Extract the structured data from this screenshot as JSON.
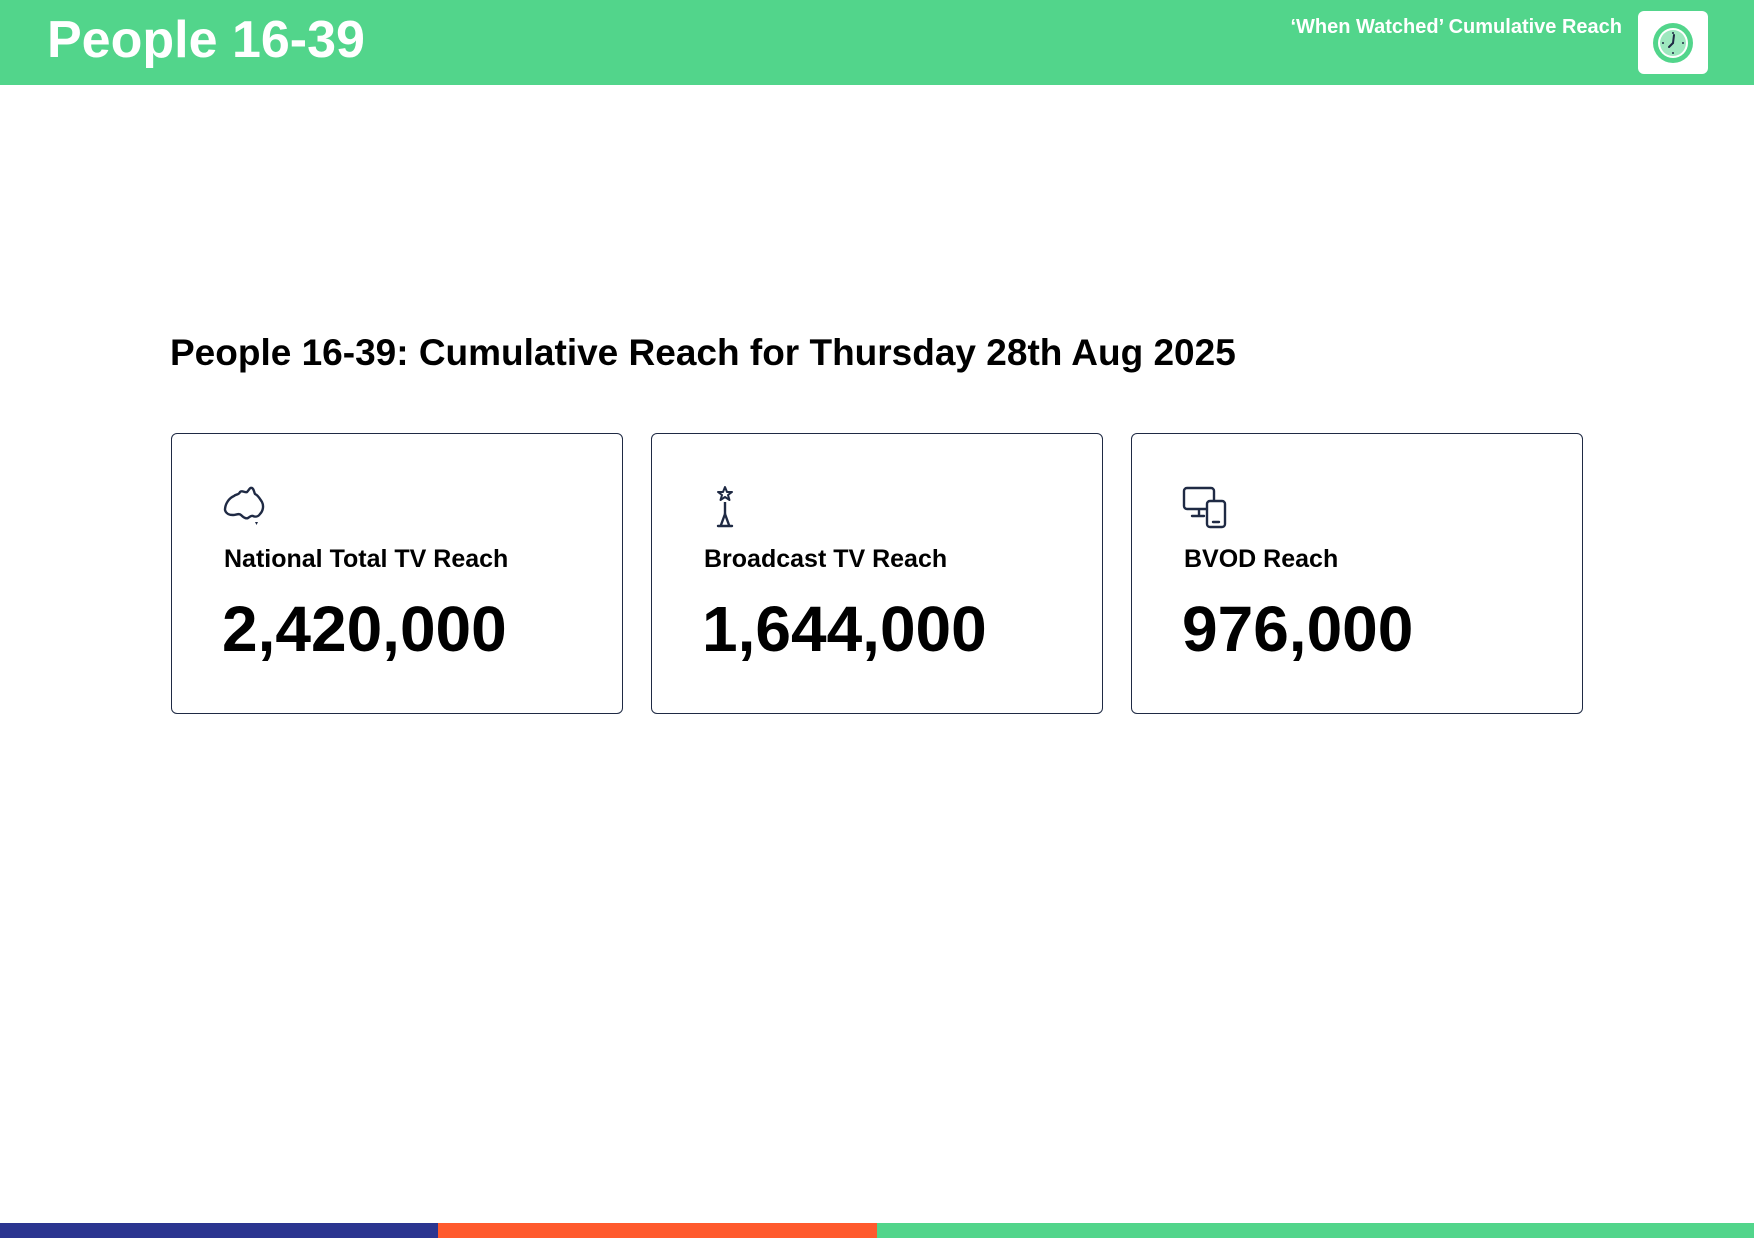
{
  "header": {
    "title": "People 16-39",
    "subtitle": "‘When Watched’ Cumulative Reach",
    "icon": "clock-icon",
    "color": "#52d58b"
  },
  "report": {
    "title": "People 16-39: Cumulative Reach for Thursday 28th Aug 2025"
  },
  "cards": [
    {
      "icon": "australia-map-icon",
      "label": "National Total TV Reach",
      "value": "2,420,000"
    },
    {
      "icon": "broadcast-tower-icon",
      "label": "Broadcast TV Reach",
      "value": "1,644,000"
    },
    {
      "icon": "devices-icon",
      "label": "BVOD Reach",
      "value": "976,000"
    }
  ],
  "footer_colors": [
    "#2b3590",
    "#ff5a2d",
    "#52d58b"
  ]
}
